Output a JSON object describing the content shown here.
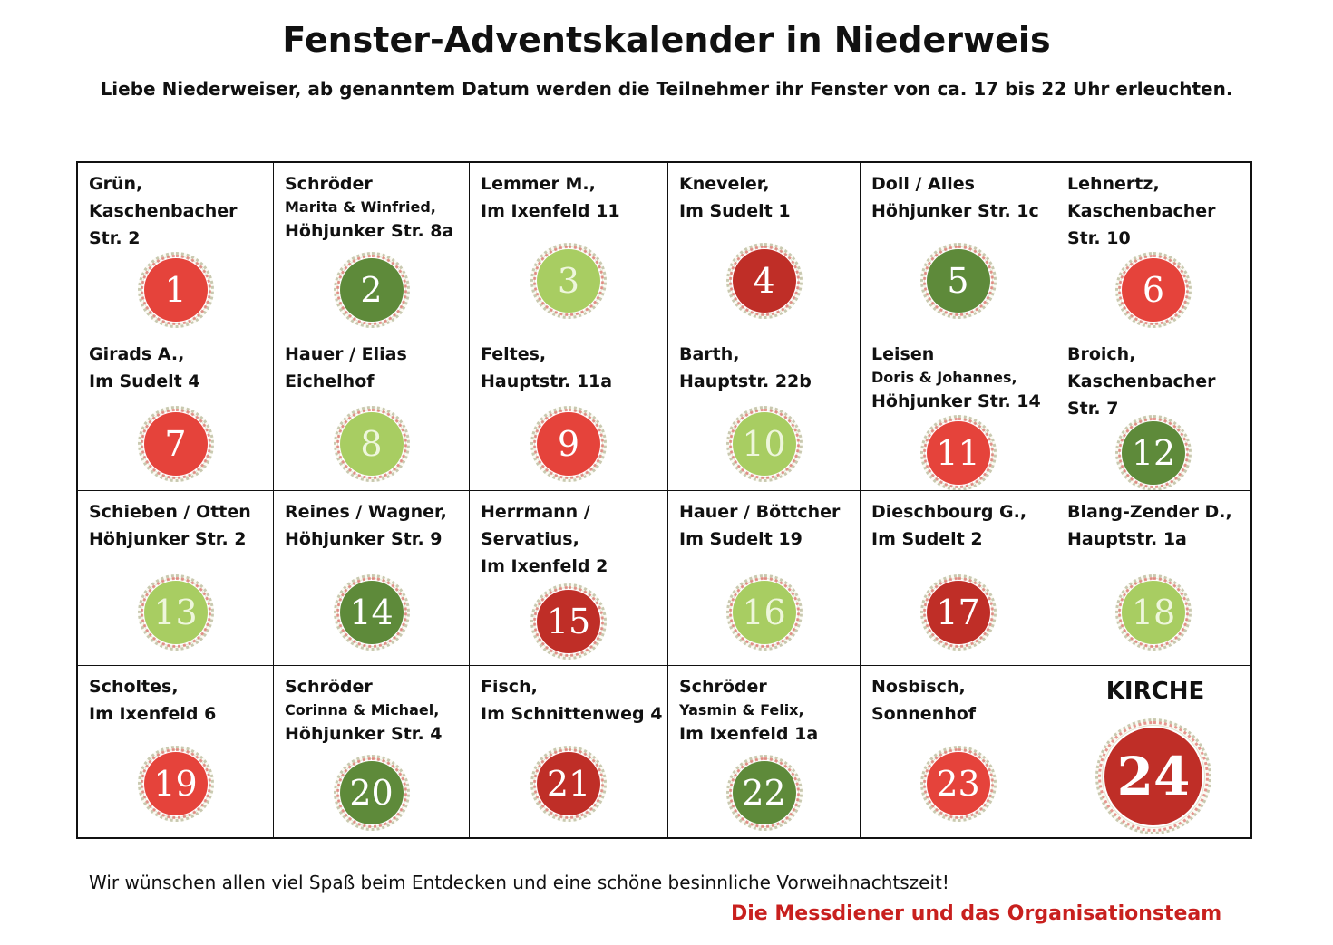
{
  "title": "Fenster-Adventskalender in Niederweis",
  "subtitle": "Liebe Niederweiser, ab genanntem Datum werden die Teilnehmer ihr Fenster von ca. 17 bis 22 Uhr erleuchten.",
  "colors": {
    "red": "#e5433b",
    "dark_red": "#bf2e27",
    "light_green": "#a8cd62",
    "dark_green": "#5e8a3a",
    "signature": "#c8201e"
  },
  "cells": [
    {
      "lines": [
        {
          "text": "Grün,"
        },
        {
          "text": "Kaschenbacher"
        },
        {
          "text": "Str. 2"
        }
      ],
      "number": "1",
      "color": "red"
    },
    {
      "lines": [
        {
          "text": "Schröder"
        },
        {
          "text": "Marita & Winfried,",
          "small": true
        },
        {
          "text": "Höhjunker Str. 8a"
        }
      ],
      "number": "2",
      "color": "dark_green"
    },
    {
      "lines": [
        {
          "text": "Lemmer M.,"
        },
        {
          "text": "Im Ixenfeld 11"
        }
      ],
      "number": "3",
      "color": "light_green"
    },
    {
      "lines": [
        {
          "text": "Kneveler,"
        },
        {
          "text": "Im Sudelt 1"
        }
      ],
      "number": "4",
      "color": "dark_red"
    },
    {
      "lines": [
        {
          "text": "Doll / Alles"
        },
        {
          "text": "Höhjunker Str. 1c"
        }
      ],
      "number": "5",
      "color": "dark_green"
    },
    {
      "lines": [
        {
          "text": "Lehnertz,"
        },
        {
          "text": "Kaschenbacher"
        },
        {
          "text": "Str. 10"
        }
      ],
      "number": "6",
      "color": "red"
    },
    {
      "lines": [
        {
          "text": "Girads A.,"
        },
        {
          "text": "Im Sudelt 4"
        }
      ],
      "number": "7",
      "color": "red"
    },
    {
      "lines": [
        {
          "text": "Hauer / Elias"
        },
        {
          "text": "Eichelhof"
        }
      ],
      "number": "8",
      "color": "light_green"
    },
    {
      "lines": [
        {
          "text": "Feltes,"
        },
        {
          "text": "Hauptstr. 11a"
        }
      ],
      "number": "9",
      "color": "red"
    },
    {
      "lines": [
        {
          "text": "Barth,"
        },
        {
          "text": "Hauptstr. 22b"
        }
      ],
      "number": "10",
      "color": "light_green"
    },
    {
      "lines": [
        {
          "text": "Leisen"
        },
        {
          "text": "Doris & Johannes,",
          "small": true
        },
        {
          "text": "Höhjunker Str. 14"
        }
      ],
      "number": "11",
      "color": "red"
    },
    {
      "lines": [
        {
          "text": "Broich,"
        },
        {
          "text": "Kaschenbacher"
        },
        {
          "text": "Str. 7"
        }
      ],
      "number": "12",
      "color": "dark_green"
    },
    {
      "lines": [
        {
          "text": "Schieben / Otten"
        },
        {
          "text": "Höhjunker Str. 2"
        }
      ],
      "number": "13",
      "color": "light_green"
    },
    {
      "lines": [
        {
          "text": "Reines / Wagner,"
        },
        {
          "text": "Höhjunker Str. 9"
        }
      ],
      "number": "14",
      "color": "dark_green"
    },
    {
      "lines": [
        {
          "text": "Herrmann /"
        },
        {
          "text": "Servatius,"
        },
        {
          "text": "Im Ixenfeld 2"
        }
      ],
      "number": "15",
      "color": "dark_red"
    },
    {
      "lines": [
        {
          "text": "Hauer / Böttcher"
        },
        {
          "text": "Im Sudelt 19"
        }
      ],
      "number": "16",
      "color": "light_green"
    },
    {
      "lines": [
        {
          "text": "Dieschbourg G.,"
        },
        {
          "text": "Im Sudelt 2"
        }
      ],
      "number": "17",
      "color": "dark_red"
    },
    {
      "lines": [
        {
          "text": "Blang-Zender D.,"
        },
        {
          "text": "Hauptstr. 1a"
        }
      ],
      "number": "18",
      "color": "light_green"
    },
    {
      "lines": [
        {
          "text": "Scholtes,"
        },
        {
          "text": "Im Ixenfeld 6"
        }
      ],
      "number": "19",
      "color": "red"
    },
    {
      "lines": [
        {
          "text": "Schröder"
        },
        {
          "text": "Corinna & Michael,",
          "small": true
        },
        {
          "text": "Höhjunker Str. 4"
        }
      ],
      "number": "20",
      "color": "dark_green"
    },
    {
      "lines": [
        {
          "text": "Fisch,"
        },
        {
          "text": "Im Schnittenweg 4"
        }
      ],
      "number": "21",
      "color": "dark_red"
    },
    {
      "lines": [
        {
          "text": "Schröder"
        },
        {
          "text": "Yasmin & Felix,",
          "small": true
        },
        {
          "text": "Im Ixenfeld 1a"
        }
      ],
      "number": "22",
      "color": "dark_green"
    },
    {
      "lines": [
        {
          "text": "Nosbisch,"
        },
        {
          "text": "Sonnenhof"
        }
      ],
      "number": "23",
      "color": "red"
    },
    {
      "lines": [
        {
          "text": "KIRCHE",
          "center": true
        }
      ],
      "number": "24",
      "color": "dark_red",
      "big": true
    }
  ],
  "footer": {
    "text": "Wir wünschen allen viel Spaß beim Entdecken und eine schöne besinnliche Vorweihnachtszeit!",
    "signature": "Die Messdiener und das Organisationsteam"
  }
}
